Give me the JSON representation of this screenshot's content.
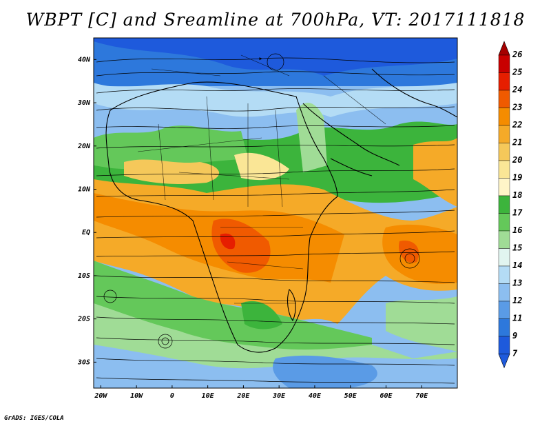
{
  "title": "WBPT [C] and Sreamline at 700hPa, VT: 2017111818",
  "footer": "GrADS: IGES/COLA",
  "map": {
    "lon_range": [
      -22,
      80
    ],
    "lat_range": [
      -36,
      45
    ],
    "lon_ticks": [
      "20W",
      "10W",
      "0",
      "10E",
      "20E",
      "30E",
      "40E",
      "50E",
      "60E",
      "70E"
    ],
    "lat_ticks": [
      "40N",
      "30N",
      "20N",
      "10N",
      "EQ",
      "10S",
      "20S",
      "30S"
    ]
  },
  "colorbar": {
    "labels": [
      "26",
      "25",
      "24",
      "23",
      "22",
      "21",
      "20",
      "19",
      "18",
      "17",
      "16",
      "15",
      "14",
      "13",
      "12",
      "11",
      "9",
      "7"
    ],
    "colors": [
      "#a50000",
      "#c80000",
      "#e61e00",
      "#f05a00",
      "#f58c00",
      "#f5aa28",
      "#f5c85a",
      "#fae696",
      "#fff5c8",
      "#3cb43c",
      "#64c85a",
      "#a0dc96",
      "#e1f5f0",
      "#b4dcf5",
      "#8cbef0",
      "#5a9be6",
      "#2d78dc",
      "#1e5adc"
    ]
  }
}
